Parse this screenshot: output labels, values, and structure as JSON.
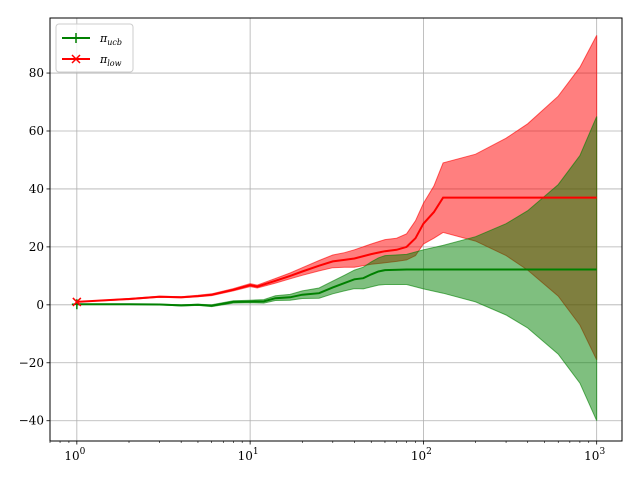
{
  "chart_data": {
    "type": "line",
    "title": "",
    "xlabel": "",
    "ylabel": "",
    "xscale": "log",
    "xlim": [
      0.7,
      1400
    ],
    "ylim": [
      -47,
      99
    ],
    "xticks": [
      {
        "value": 1,
        "base": "10",
        "exp": "0"
      },
      {
        "value": 10,
        "base": "10",
        "exp": "1"
      },
      {
        "value": 100,
        "base": "10",
        "exp": "2"
      },
      {
        "value": 1000,
        "base": "10",
        "exp": "3"
      }
    ],
    "yticks": [
      -40,
      -20,
      0,
      20,
      40,
      60,
      80
    ],
    "ytick_labels": [
      "−40",
      "−20",
      "0",
      "20",
      "40",
      "60",
      "80"
    ],
    "grid": true,
    "legend": {
      "placement": "top-left",
      "entries": [
        {
          "name": "π",
          "sub": "ucb",
          "color": "#008000",
          "marker": "+"
        },
        {
          "name": "π",
          "sub": "low",
          "color": "#ff0000",
          "marker": "x"
        }
      ]
    },
    "series": [
      {
        "name": "π_ucb",
        "color": "#008000",
        "band_color": "#008000",
        "band_opacity": 0.5,
        "marker_x": [
          1
        ],
        "points": [
          {
            "x": 1,
            "y": 0.2,
            "lo": 0.2,
            "hi": 0.2
          },
          {
            "x": 2,
            "y": 0.2,
            "lo": 0.1,
            "hi": 0.3
          },
          {
            "x": 3,
            "y": 0.1,
            "lo": 0.0,
            "hi": 0.2
          },
          {
            "x": 4,
            "y": -0.2,
            "lo": -0.4,
            "hi": 0.0
          },
          {
            "x": 5,
            "y": 0.0,
            "lo": -0.2,
            "hi": 0.2
          },
          {
            "x": 6,
            "y": -0.3,
            "lo": -0.6,
            "hi": 0.0
          },
          {
            "x": 8,
            "y": 1.0,
            "lo": 0.6,
            "hi": 1.4
          },
          {
            "x": 10,
            "y": 1.1,
            "lo": 0.7,
            "hi": 1.6
          },
          {
            "x": 12,
            "y": 1.2,
            "lo": 0.6,
            "hi": 1.8
          },
          {
            "x": 14,
            "y": 2.3,
            "lo": 1.5,
            "hi": 3.1
          },
          {
            "x": 17,
            "y": 2.6,
            "lo": 1.6,
            "hi": 3.6
          },
          {
            "x": 20,
            "y": 3.5,
            "lo": 2.2,
            "hi": 4.8
          },
          {
            "x": 25,
            "y": 4.0,
            "lo": 2.3,
            "hi": 5.8
          },
          {
            "x": 30,
            "y": 6.0,
            "lo": 3.8,
            "hi": 8.2
          },
          {
            "x": 35,
            "y": 7.5,
            "lo": 4.8,
            "hi": 10.2
          },
          {
            "x": 40,
            "y": 8.8,
            "lo": 5.6,
            "hi": 12.0
          },
          {
            "x": 45,
            "y": 9.2,
            "lo": 5.5,
            "hi": 13.0
          },
          {
            "x": 50,
            "y": 10.5,
            "lo": 6.2,
            "hi": 14.8
          },
          {
            "x": 55,
            "y": 11.5,
            "lo": 6.8,
            "hi": 16.2
          },
          {
            "x": 60,
            "y": 12.0,
            "lo": 7.0,
            "hi": 17.0
          },
          {
            "x": 80,
            "y": 12.2,
            "lo": 7.0,
            "hi": 17.4
          },
          {
            "x": 100,
            "y": 12.2,
            "lo": 5.5,
            "hi": 19.0
          },
          {
            "x": 130,
            "y": 12.2,
            "lo": 4.0,
            "hi": 20.5
          },
          {
            "x": 200,
            "y": 12.2,
            "lo": 1.0,
            "hi": 23.5
          },
          {
            "x": 300,
            "y": 12.2,
            "lo": -3.5,
            "hi": 28.0
          },
          {
            "x": 400,
            "y": 12.2,
            "lo": -8.0,
            "hi": 32.5
          },
          {
            "x": 600,
            "y": 12.2,
            "lo": -17.0,
            "hi": 41.5
          },
          {
            "x": 800,
            "y": 12.2,
            "lo": -27.0,
            "hi": 51.5
          },
          {
            "x": 1000,
            "y": 12.2,
            "lo": -40.0,
            "hi": 65.0
          }
        ]
      },
      {
        "name": "π_low",
        "color": "#ff0000",
        "band_color": "#ff0000",
        "band_opacity": 0.5,
        "marker_x": [
          1
        ],
        "points": [
          {
            "x": 1,
            "y": 1.0,
            "lo": 1.0,
            "hi": 1.0
          },
          {
            "x": 2,
            "y": 2.0,
            "lo": 1.8,
            "hi": 2.2
          },
          {
            "x": 3,
            "y": 2.8,
            "lo": 2.6,
            "hi": 3.0
          },
          {
            "x": 4,
            "y": 2.6,
            "lo": 2.4,
            "hi": 2.8
          },
          {
            "x": 5,
            "y": 3.0,
            "lo": 2.8,
            "hi": 3.3
          },
          {
            "x": 6,
            "y": 3.5,
            "lo": 3.2,
            "hi": 3.8
          },
          {
            "x": 8,
            "y": 5.2,
            "lo": 4.8,
            "hi": 5.6
          },
          {
            "x": 10,
            "y": 6.8,
            "lo": 6.3,
            "hi": 7.3
          },
          {
            "x": 11,
            "y": 6.3,
            "lo": 5.8,
            "hi": 6.8
          },
          {
            "x": 14,
            "y": 8.3,
            "lo": 7.5,
            "hi": 9.1
          },
          {
            "x": 17,
            "y": 10.0,
            "lo": 9.0,
            "hi": 11.0
          },
          {
            "x": 20,
            "y": 11.5,
            "lo": 10.2,
            "hi": 12.8
          },
          {
            "x": 25,
            "y": 13.5,
            "lo": 11.7,
            "hi": 15.3
          },
          {
            "x": 30,
            "y": 15.0,
            "lo": 12.8,
            "hi": 17.2
          },
          {
            "x": 35,
            "y": 15.5,
            "lo": 13.0,
            "hi": 18.0
          },
          {
            "x": 40,
            "y": 16.0,
            "lo": 13.0,
            "hi": 19.0
          },
          {
            "x": 50,
            "y": 17.5,
            "lo": 14.0,
            "hi": 21.0
          },
          {
            "x": 60,
            "y": 18.5,
            "lo": 14.5,
            "hi": 22.5
          },
          {
            "x": 70,
            "y": 19.0,
            "lo": 15.0,
            "hi": 23.0
          },
          {
            "x": 80,
            "y": 20.0,
            "lo": 15.5,
            "hi": 24.5
          },
          {
            "x": 90,
            "y": 23.0,
            "lo": 17.0,
            "hi": 29.0
          },
          {
            "x": 100,
            "y": 28.0,
            "lo": 21.0,
            "hi": 35.0
          },
          {
            "x": 115,
            "y": 32.0,
            "lo": 23.0,
            "hi": 41.0
          },
          {
            "x": 130,
            "y": 37.0,
            "lo": 25.0,
            "hi": 49.0
          },
          {
            "x": 200,
            "y": 37.0,
            "lo": 22.0,
            "hi": 52.0
          },
          {
            "x": 300,
            "y": 37.0,
            "lo": 17.0,
            "hi": 57.5
          },
          {
            "x": 400,
            "y": 37.0,
            "lo": 12.0,
            "hi": 62.5
          },
          {
            "x": 600,
            "y": 37.0,
            "lo": 3.0,
            "hi": 72.0
          },
          {
            "x": 800,
            "y": 37.0,
            "lo": -7.0,
            "hi": 82.0
          },
          {
            "x": 1000,
            "y": 37.0,
            "lo": -19.0,
            "hi": 93.0
          }
        ]
      }
    ]
  }
}
